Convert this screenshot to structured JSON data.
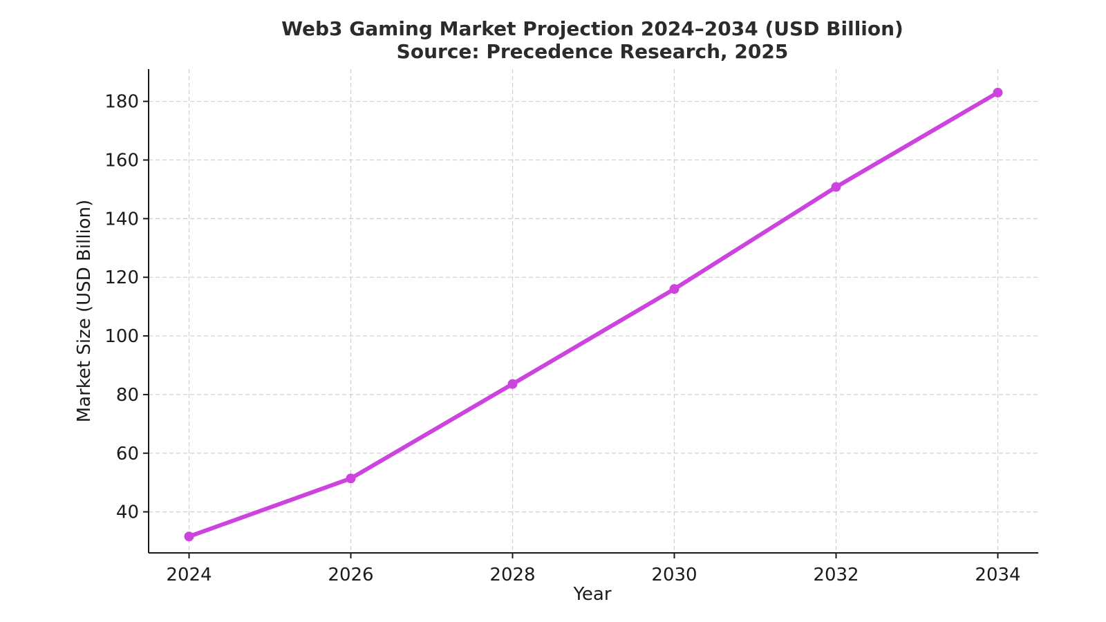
{
  "chart_data": {
    "type": "line",
    "title": "Web3 Gaming Market Projection 2024–2034 (USD Billion)",
    "subtitle": "Source: Precedence Research, 2025",
    "xlabel": "Year",
    "ylabel": "Market Size (USD Billion)",
    "x": [
      2024,
      2026,
      2028,
      2030,
      2032,
      2034
    ],
    "series": [
      {
        "values": [
          31.6,
          51.4,
          83.6,
          116.0,
          150.8,
          183.0
        ],
        "color": "#cc44dd"
      }
    ],
    "xlim": [
      2023.5,
      2034.5
    ],
    "ylim": [
      26,
      191
    ],
    "x_ticks": [
      2024,
      2026,
      2028,
      2030,
      2032,
      2034
    ],
    "y_ticks": [
      40,
      60,
      80,
      100,
      120,
      140,
      160,
      180
    ],
    "grid": true
  }
}
